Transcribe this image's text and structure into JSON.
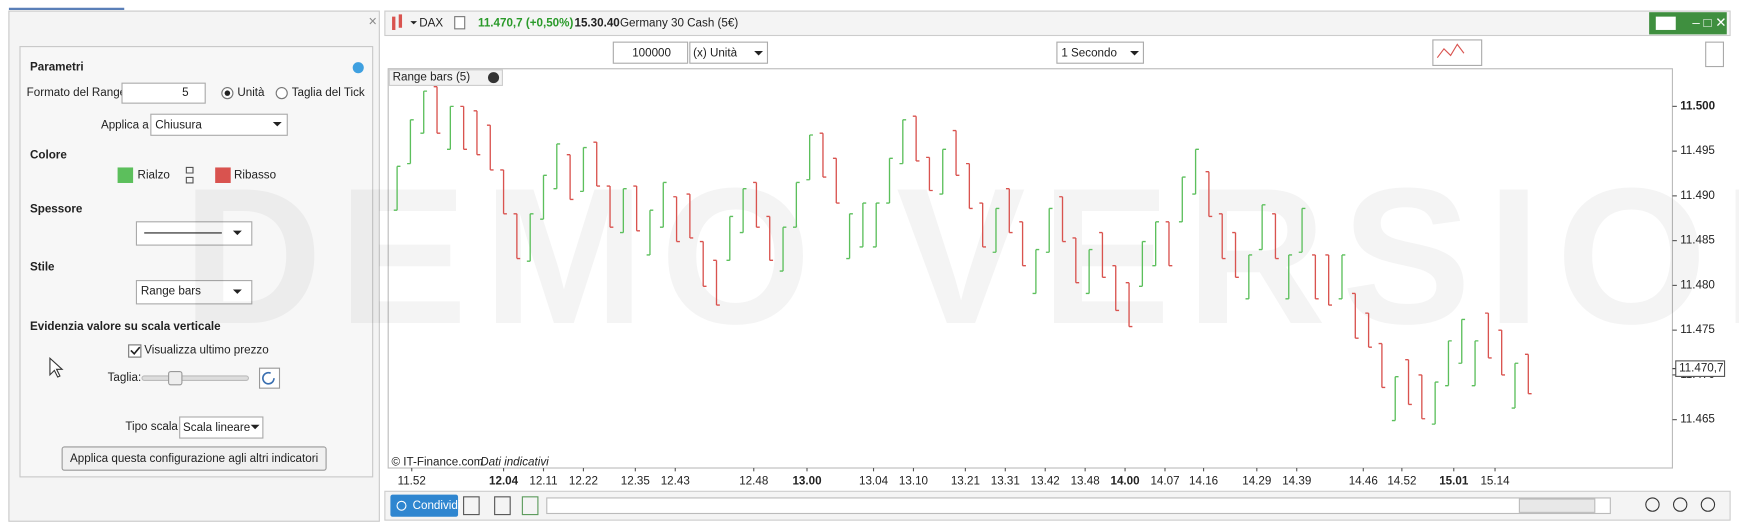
{
  "window": {
    "symbol": "DAX",
    "last": "11.470,7 (+0,50%)",
    "time": "15.30.40",
    "instrument": "Germany 30 Cash (5€)"
  },
  "toolbar": {
    "quantity": 100000,
    "unit": "(x) Unità",
    "interval": "1 Secondo"
  },
  "panel": {
    "params_title": "Parametri",
    "range_format": "Formato del Range",
    "range_value": 5,
    "unit_option": "Unità",
    "tick_option": "Taglia del Tick",
    "apply_to": "Applica a",
    "apply_to_value": "Chiusura",
    "color_title": "Colore",
    "thickness_title": "Spessore",
    "style_title": "Stile",
    "style_value": "Range bars",
    "highlight_title": "Evidenzia valore su scala verticale",
    "show_last": "Visualizza ultimo prezzo",
    "size": "Taglia:",
    "scale_type": "Tipo scala",
    "scale_value": "Scala lineare",
    "apply_all": "Applica questa configurazione agli altri indicatori"
  },
  "footer": {
    "share": "Condividi"
  },
  "chart_data": {
    "type": "range-bar",
    "label": "Range bars (5)",
    "watermark": "DEMO VERSION",
    "source": "© IT-Finance.com",
    "source_note": "Dati indicativi",
    "series": [
      {
        "name": "Rialzo",
        "color": "#5cbf5c"
      },
      {
        "name": "Ribasso",
        "color": "#d9534f"
      }
    ],
    "high": [
      11493.3,
      11498.5,
      11501.7,
      11502.2,
      11500.0,
      11500.0,
      11499.5,
      11497.9,
      11492.9,
      11488.0,
      11488.0,
      11492.3,
      11495.8,
      11494.6,
      11495.4,
      11496.0,
      11491.1,
      11490.8,
      11491.1,
      11488.4,
      11491.5,
      11489.9,
      11490.2,
      11484.9,
      11482.8,
      11487.7,
      11490.8,
      11491.5,
      11487.7,
      11486.5,
      11491.5,
      11496.8,
      11497.0,
      11494.2,
      11488.0,
      11489.2,
      11489.2,
      11494.2,
      11498.5,
      11498.9,
      11494.3,
      11495.2,
      11497.3,
      11493.6,
      11489.2,
      11488.6,
      11490.8,
      11487.1,
      11484.0,
      11488.6,
      11489.9,
      11485.3,
      11484.0,
      11485.9,
      11482.2,
      11480.3,
      11484.9,
      11487.1,
      11487.1,
      11492.1,
      11495.2,
      11492.7,
      11488.0,
      11485.9,
      11483.4,
      11489.0,
      11488.0,
      11483.4,
      11488.6,
      11483.4,
      11483.4,
      11483.4,
      11479.1,
      11476.9,
      11473.5,
      11469.8,
      11471.7,
      11470.0,
      11469.2,
      11473.8,
      11476.2,
      11473.8,
      11476.9,
      11475.0,
      11471.3,
      11472.3
    ],
    "low": [
      11488.4,
      11493.6,
      11497.0,
      11497.0,
      11495.2,
      11495.2,
      11494.6,
      11492.9,
      11488.0,
      11483.0,
      11482.7,
      11487.4,
      11490.8,
      11489.6,
      11490.5,
      11491.1,
      11486.5,
      11485.9,
      11486.1,
      11483.4,
      11486.5,
      11484.9,
      11485.3,
      11479.9,
      11477.8,
      11482.8,
      11485.9,
      11486.5,
      11482.8,
      11481.6,
      11486.5,
      11491.8,
      11492.1,
      11489.2,
      11483.0,
      11484.3,
      11484.3,
      11489.2,
      11493.6,
      11493.9,
      11490.6,
      11490.2,
      11492.3,
      11488.6,
      11484.3,
      11483.7,
      11485.9,
      11482.2,
      11479.1,
      11483.7,
      11484.9,
      11480.3,
      11479.1,
      11480.9,
      11477.2,
      11475.4,
      11479.9,
      11482.2,
      11482.2,
      11487.1,
      11490.2,
      11487.7,
      11483.0,
      11480.9,
      11478.5,
      11484.0,
      11483.0,
      11478.5,
      11483.7,
      11478.5,
      11477.8,
      11478.5,
      11474.1,
      11473.1,
      11468.6,
      11464.9,
      11466.7,
      11465.1,
      11464.5,
      11468.8,
      11471.3,
      11468.8,
      11471.9,
      11470.0,
      11466.3,
      11467.9
    ],
    "dir": [
      0,
      0,
      0,
      1,
      0,
      1,
      1,
      1,
      1,
      1,
      0,
      0,
      0,
      1,
      0,
      1,
      1,
      0,
      1,
      0,
      0,
      1,
      1,
      1,
      1,
      0,
      0,
      1,
      1,
      0,
      0,
      0,
      1,
      1,
      0,
      0,
      0,
      0,
      0,
      1,
      1,
      0,
      1,
      1,
      1,
      0,
      1,
      1,
      0,
      0,
      1,
      1,
      0,
      1,
      1,
      1,
      0,
      0,
      1,
      0,
      0,
      1,
      1,
      1,
      0,
      0,
      1,
      0,
      0,
      1,
      1,
      0,
      1,
      1,
      1,
      0,
      1,
      1,
      0,
      0,
      0,
      0,
      1,
      1,
      0,
      1
    ],
    "xlim": [
      -0.67,
      95.83
    ],
    "xticks": [
      {
        "value": 1.1,
        "label": "11.52"
      },
      {
        "value": 8,
        "label": "12.04",
        "bold": true
      },
      {
        "value": 11,
        "label": "12.11"
      },
      {
        "value": 14,
        "label": "12.22"
      },
      {
        "value": 17.9,
        "label": "12.35"
      },
      {
        "value": 20.9,
        "label": "12.43"
      },
      {
        "value": 26.8,
        "label": "12.48"
      },
      {
        "value": 30.8,
        "label": "13.00",
        "bold": true
      },
      {
        "value": 35.8,
        "label": "13.04"
      },
      {
        "value": 38.8,
        "label": "13.10"
      },
      {
        "value": 42.7,
        "label": "13.21"
      },
      {
        "value": 45.7,
        "label": "13.31"
      },
      {
        "value": 48.7,
        "label": "13.42"
      },
      {
        "value": 51.7,
        "label": "13.48"
      },
      {
        "value": 54.7,
        "label": "14.00",
        "bold": true
      },
      {
        "value": 57.7,
        "label": "14.07"
      },
      {
        "value": 60.6,
        "label": "14.16"
      },
      {
        "value": 64.6,
        "label": "14.29"
      },
      {
        "value": 67.6,
        "label": "14.39"
      },
      {
        "value": 72.6,
        "label": "14.46"
      },
      {
        "value": 75.5,
        "label": "14.52"
      },
      {
        "value": 79.4,
        "label": "15.01",
        "bold": true
      },
      {
        "value": 82.5,
        "label": "15.14"
      }
    ],
    "ylim": [
      11459.6,
      11504.2
    ],
    "yticks": [
      {
        "value": 11500,
        "label": "11.500",
        "bold": true
      },
      {
        "value": 11495,
        "label": "11.495"
      },
      {
        "value": 11490,
        "label": "11.490"
      },
      {
        "value": 11485,
        "label": "11.485"
      },
      {
        "value": 11480,
        "label": "11.480"
      },
      {
        "value": 11475,
        "label": "11.475"
      },
      {
        "value": 11470,
        "label": "11.470"
      },
      {
        "value": 11465,
        "label": "11.465"
      }
    ],
    "last_price": {
      "value": 11470.7,
      "label": "11.470,7"
    }
  }
}
